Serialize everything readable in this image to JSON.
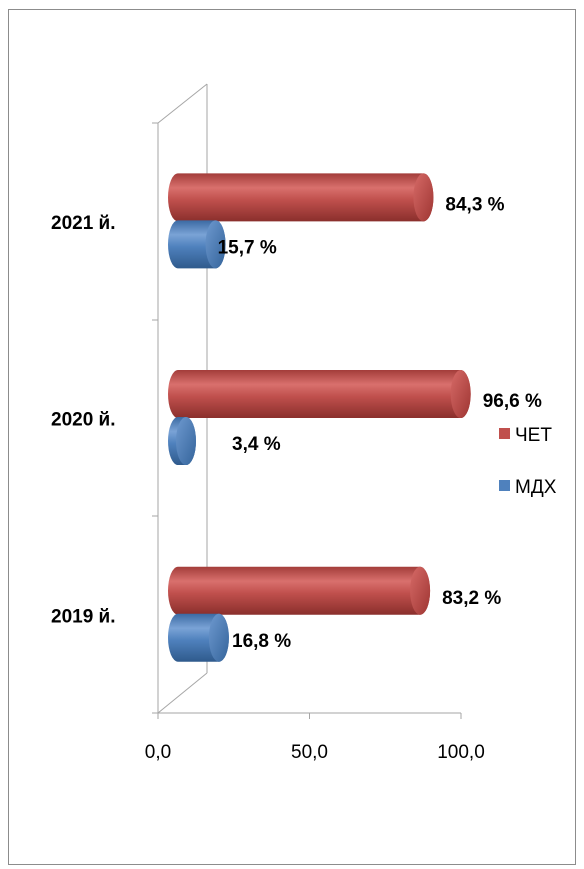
{
  "chart_data": {
    "type": "bar",
    "orientation": "horizontal",
    "style": "3d-cylinder",
    "categories": [
      "2019 й.",
      "2020 й.",
      "2021 й."
    ],
    "series": [
      {
        "name": "ЧЕТ",
        "values": [
          83.2,
          96.6,
          84.3
        ],
        "labels": [
          "83,2 %",
          "96,6 %",
          "84,3 %"
        ],
        "color": "#c0504d"
      },
      {
        "name": "МДХ",
        "values": [
          16.8,
          3.4,
          15.7
        ],
        "labels": [
          "16,8 %",
          "3,4 %",
          "15,7 %"
        ],
        "color": "#4f81bd"
      }
    ],
    "x_ticks": [
      "0,0",
      "50,0",
      "100,0"
    ],
    "xlim": [
      0,
      100
    ],
    "grid": false,
    "legend_position": "right"
  }
}
